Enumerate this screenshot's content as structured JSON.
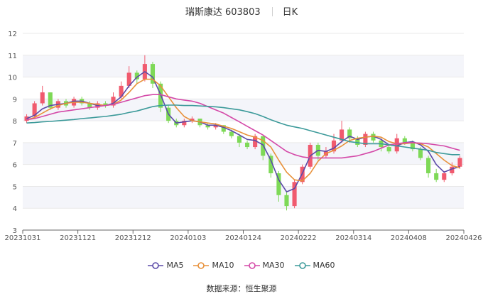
{
  "header": {
    "stock_name": "瑞斯康达",
    "stock_code": "603803",
    "period": "日K"
  },
  "source": {
    "label": "数据来源：",
    "value": "恒生聚源"
  },
  "colors": {
    "up": "#f05a6e",
    "down": "#7ed957",
    "MA5": "#5b4aa8",
    "MA10": "#e8913a",
    "MA30": "#d449a8",
    "MA60": "#3c9a9a",
    "grid": "#e9e9e9",
    "band": "#f4f5fa"
  },
  "chart_data": {
    "type": "candlestick",
    "x_tick_labels": [
      "20231031",
      "20231121",
      "20231212",
      "20240103",
      "20240124",
      "20240222",
      "20240314",
      "20240408",
      "20240426"
    ],
    "ylim": [
      3,
      12
    ],
    "y_tick_labels": [
      "3",
      "4",
      "5",
      "6",
      "7",
      "8",
      "9",
      "10",
      "11",
      "12"
    ],
    "legend": [
      "MA5",
      "MA10",
      "MA30",
      "MA60"
    ],
    "legend_position": "bottom",
    "series": [
      {
        "name": "MA5",
        "values": [
          8.1,
          8.25,
          8.55,
          8.7,
          8.75,
          8.8,
          8.9,
          8.9,
          8.8,
          8.7,
          8.7,
          8.8,
          9.1,
          9.6,
          10.0,
          10.25,
          10.0,
          9.2,
          8.3,
          7.9,
          7.95,
          8.0,
          7.95,
          7.8,
          7.8,
          7.7,
          7.55,
          7.35,
          7.15,
          7.1,
          6.9,
          6.2,
          5.3,
          4.75,
          4.9,
          5.6,
          6.4,
          6.65,
          6.6,
          6.75,
          7.05,
          7.3,
          7.15,
          7.25,
          7.3,
          7.15,
          6.9,
          6.85,
          7.0,
          7.05,
          6.9,
          6.6,
          6.0,
          5.65,
          5.8,
          5.9
        ]
      },
      {
        "name": "MA10",
        "values": [
          8.05,
          8.15,
          8.35,
          8.55,
          8.7,
          8.8,
          8.85,
          8.85,
          8.8,
          8.75,
          8.7,
          8.75,
          8.95,
          9.3,
          9.7,
          9.9,
          9.9,
          9.6,
          9.1,
          8.6,
          8.2,
          8.0,
          7.95,
          7.9,
          7.85,
          7.75,
          7.65,
          7.5,
          7.35,
          7.25,
          7.1,
          6.8,
          6.2,
          5.65,
          5.3,
          5.25,
          5.6,
          6.15,
          6.5,
          6.65,
          6.85,
          7.1,
          7.2,
          7.25,
          7.3,
          7.25,
          7.05,
          6.95,
          6.95,
          7.0,
          6.95,
          6.8,
          6.5,
          6.2,
          5.95,
          5.85
        ]
      },
      {
        "name": "MA30",
        "values": [
          8.05,
          8.1,
          8.2,
          8.3,
          8.4,
          8.45,
          8.5,
          8.55,
          8.6,
          8.65,
          8.7,
          8.75,
          8.85,
          8.95,
          9.05,
          9.15,
          9.2,
          9.2,
          9.1,
          9.0,
          8.95,
          8.9,
          8.8,
          8.65,
          8.5,
          8.35,
          8.15,
          7.95,
          7.75,
          7.55,
          7.35,
          7.1,
          6.85,
          6.6,
          6.45,
          6.35,
          6.3,
          6.3,
          6.3,
          6.3,
          6.3,
          6.35,
          6.4,
          6.5,
          6.6,
          6.75,
          6.9,
          6.95,
          7.0,
          7.0,
          6.98,
          6.95,
          6.9,
          6.85,
          6.75,
          6.65
        ]
      },
      {
        "name": "MA60",
        "values": [
          7.9,
          7.92,
          7.95,
          7.97,
          8.0,
          8.03,
          8.06,
          8.1,
          8.13,
          8.17,
          8.2,
          8.25,
          8.3,
          8.38,
          8.45,
          8.55,
          8.65,
          8.7,
          8.72,
          8.72,
          8.7,
          8.7,
          8.68,
          8.66,
          8.64,
          8.6,
          8.55,
          8.5,
          8.42,
          8.33,
          8.2,
          8.05,
          7.92,
          7.8,
          7.72,
          7.65,
          7.55,
          7.45,
          7.35,
          7.25,
          7.15,
          7.05,
          7.0,
          6.95,
          6.95,
          6.95,
          6.9,
          6.85,
          6.8,
          6.75,
          6.7,
          6.65,
          6.55,
          6.5,
          6.45,
          6.45
        ]
      }
    ],
    "candles": [
      [
        8.0,
        8.2,
        8.3,
        7.9
      ],
      [
        8.2,
        8.8,
        8.9,
        8.1
      ],
      [
        8.8,
        9.3,
        9.6,
        8.7
      ],
      [
        9.3,
        8.6,
        9.3,
        8.5
      ],
      [
        8.6,
        8.9,
        9.0,
        8.5
      ],
      [
        8.9,
        8.7,
        9.0,
        8.6
      ],
      [
        8.7,
        9.0,
        9.1,
        8.6
      ],
      [
        9.0,
        8.8,
        9.1,
        8.7
      ],
      [
        8.8,
        8.6,
        8.9,
        8.5
      ],
      [
        8.6,
        8.8,
        8.9,
        8.5
      ],
      [
        8.8,
        8.7,
        8.9,
        8.6
      ],
      [
        8.7,
        9.1,
        9.3,
        8.6
      ],
      [
        9.1,
        9.6,
        9.8,
        9.0
      ],
      [
        9.6,
        10.2,
        10.5,
        9.5
      ],
      [
        10.2,
        9.9,
        10.3,
        9.7
      ],
      [
        9.9,
        10.6,
        11.0,
        9.8
      ],
      [
        10.6,
        9.7,
        10.7,
        9.5
      ],
      [
        9.7,
        8.6,
        9.8,
        8.4
      ],
      [
        8.6,
        8.0,
        8.7,
        7.9
      ],
      [
        8.0,
        7.8,
        8.1,
        7.7
      ],
      [
        7.8,
        8.0,
        8.1,
        7.7
      ],
      [
        8.0,
        8.1,
        8.2,
        7.9
      ],
      [
        8.1,
        7.8,
        8.1,
        7.7
      ],
      [
        7.8,
        7.7,
        7.9,
        7.6
      ],
      [
        7.7,
        7.8,
        7.9,
        7.6
      ],
      [
        7.8,
        7.5,
        7.8,
        7.4
      ],
      [
        7.5,
        7.3,
        7.6,
        7.2
      ],
      [
        7.3,
        7.0,
        7.4,
        6.8
      ],
      [
        7.0,
        6.8,
        7.1,
        6.7
      ],
      [
        6.8,
        7.3,
        7.4,
        6.7
      ],
      [
        7.3,
        6.4,
        7.3,
        6.2
      ],
      [
        6.4,
        5.6,
        6.5,
        5.4
      ],
      [
        5.6,
        4.6,
        5.7,
        4.3
      ],
      [
        4.6,
        4.1,
        4.8,
        3.9
      ],
      [
        4.1,
        5.2,
        5.3,
        4.0
      ],
      [
        5.2,
        5.9,
        6.0,
        5.1
      ],
      [
        5.9,
        6.9,
        7.0,
        5.8
      ],
      [
        6.9,
        6.4,
        7.0,
        6.2
      ],
      [
        6.4,
        6.6,
        6.8,
        6.3
      ],
      [
        6.6,
        7.1,
        7.4,
        6.5
      ],
      [
        7.1,
        7.6,
        8.0,
        7.0
      ],
      [
        7.6,
        7.2,
        7.7,
        7.0
      ],
      [
        7.2,
        6.9,
        7.3,
        6.8
      ],
      [
        6.9,
        7.4,
        7.5,
        6.8
      ],
      [
        7.4,
        7.1,
        7.5,
        7.0
      ],
      [
        7.1,
        6.8,
        7.2,
        6.6
      ],
      [
        6.8,
        6.6,
        6.9,
        6.5
      ],
      [
        6.6,
        7.2,
        7.4,
        6.5
      ],
      [
        7.2,
        7.0,
        7.3,
        6.9
      ],
      [
        7.0,
        6.7,
        7.1,
        6.6
      ],
      [
        6.7,
        6.3,
        6.8,
        6.2
      ],
      [
        6.3,
        5.6,
        6.4,
        5.4
      ],
      [
        5.6,
        5.3,
        5.8,
        5.2
      ],
      [
        5.3,
        5.6,
        5.7,
        5.2
      ],
      [
        5.6,
        5.9,
        6.1,
        5.5
      ],
      [
        5.9,
        6.3,
        6.4,
        5.8
      ]
    ]
  }
}
